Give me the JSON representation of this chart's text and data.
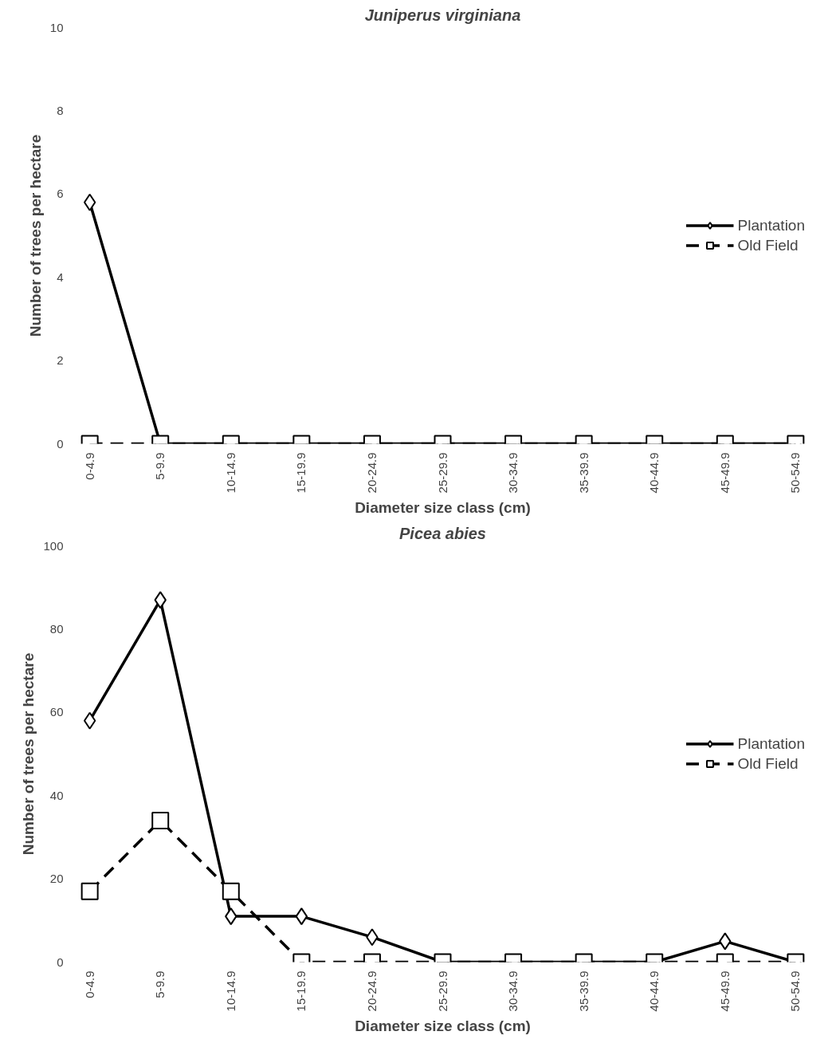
{
  "chart_data": [
    {
      "type": "line",
      "title": "Juniperus virginiana",
      "xlabel": "Diameter size class (cm)",
      "ylabel": "Number of trees per hectare",
      "categories": [
        "0-4.9",
        "5-9.9",
        "10-14.9",
        "15-19.9",
        "20-24.9",
        "25-29.9",
        "30-34.9",
        "35-39.9",
        "40-44.9",
        "45-49.9",
        "50-54.9"
      ],
      "series": [
        {
          "name": "Plantation",
          "color": "#000000",
          "marker": "diamond",
          "line_style": "solid",
          "values": [
            5.8,
            0,
            0,
            0,
            0,
            0,
            0,
            0,
            0,
            0,
            0
          ]
        },
        {
          "name": "Old Field",
          "color": "#000000",
          "marker": "square",
          "line_style": "dashed",
          "values": [
            0,
            0,
            0,
            0,
            0,
            0,
            0,
            0,
            0,
            0,
            0
          ]
        }
      ],
      "ylim": [
        0,
        10
      ],
      "yticks": [
        0,
        2,
        4,
        6,
        8,
        10
      ],
      "grid": false,
      "legend": "right"
    },
    {
      "type": "line",
      "title": "Picea abies",
      "xlabel": "Diameter size class (cm)",
      "ylabel": "Number of trees per hectare",
      "categories": [
        "0-4.9",
        "5-9.9",
        "10-14.9",
        "15-19.9",
        "20-24.9",
        "25-29.9",
        "30-34.9",
        "35-39.9",
        "40-44.9",
        "45-49.9",
        "50-54.9"
      ],
      "series": [
        {
          "name": "Plantation",
          "color": "#000000",
          "marker": "diamond",
          "line_style": "solid",
          "values": [
            58,
            87,
            11,
            11,
            6,
            0,
            0,
            0,
            0,
            5,
            0
          ]
        },
        {
          "name": "Old Field",
          "color": "#000000",
          "marker": "square",
          "line_style": "dashed",
          "values": [
            17,
            34,
            17,
            0,
            0,
            0,
            0,
            0,
            0,
            0,
            0
          ]
        }
      ],
      "ylim": [
        0,
        100
      ],
      "yticks": [
        0,
        20,
        40,
        60,
        80,
        100
      ],
      "grid": false,
      "legend": "right"
    }
  ]
}
